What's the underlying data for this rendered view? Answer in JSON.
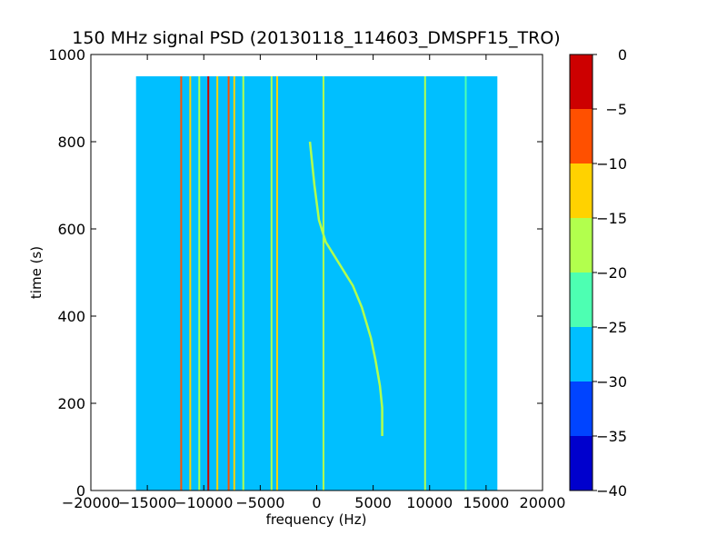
{
  "chart_data": {
    "type": "heatmap",
    "title": "150 MHz signal PSD (20130118_114603_DMSPF15_TRO)",
    "xlabel": "frequency (Hz)",
    "ylabel": "time (s)",
    "xlim": [
      -20000,
      20000
    ],
    "ylim": [
      0,
      1000
    ],
    "x_ticks": [
      -20000,
      -15000,
      -10000,
      -5000,
      0,
      5000,
      10000,
      15000,
      20000
    ],
    "y_ticks": [
      0,
      200,
      400,
      600,
      800,
      1000
    ],
    "data_extent": {
      "x": [
        -16000,
        16000
      ],
      "y": [
        0,
        950
      ]
    },
    "colorbar": {
      "range": [
        -40,
        0
      ],
      "levels": [
        -40,
        -35,
        -30,
        -25,
        -20,
        -15,
        -10,
        -5,
        0
      ],
      "colors": [
        "#0000cd",
        "#0044ff",
        "#00bfff",
        "#4dffb2",
        "#b2ff4d",
        "#ffd200",
        "#ff5000",
        "#cd0000"
      ]
    },
    "background_level": -27.5,
    "vertical_lines": [
      {
        "freq": -12000,
        "level": -7.5
      },
      {
        "freq": -11200,
        "level": -12.5
      },
      {
        "freq": -10400,
        "level": -17.5
      },
      {
        "freq": -9600,
        "level": -2.5
      },
      {
        "freq": -8800,
        "level": -12.5
      },
      {
        "freq": -7800,
        "level": -7.5
      },
      {
        "freq": -7300,
        "level": -12.5
      },
      {
        "freq": -6500,
        "level": -17.5
      },
      {
        "freq": -4000,
        "level": -17.5
      },
      {
        "freq": -3500,
        "level": -12.5
      },
      {
        "freq": 600,
        "level": -17.5
      },
      {
        "freq": 9600,
        "level": -17.5
      },
      {
        "freq": 13200,
        "level": -22.5
      }
    ],
    "doppler_trace": {
      "level": -17.5,
      "points": [
        [
          5800,
          125
        ],
        [
          5800,
          190
        ],
        [
          5600,
          240
        ],
        [
          5200,
          300
        ],
        [
          4800,
          350
        ],
        [
          4000,
          420
        ],
        [
          3200,
          470
        ],
        [
          2000,
          520
        ],
        [
          800,
          570
        ],
        [
          200,
          620
        ],
        [
          -200,
          700
        ],
        [
          -600,
          800
        ]
      ]
    }
  }
}
